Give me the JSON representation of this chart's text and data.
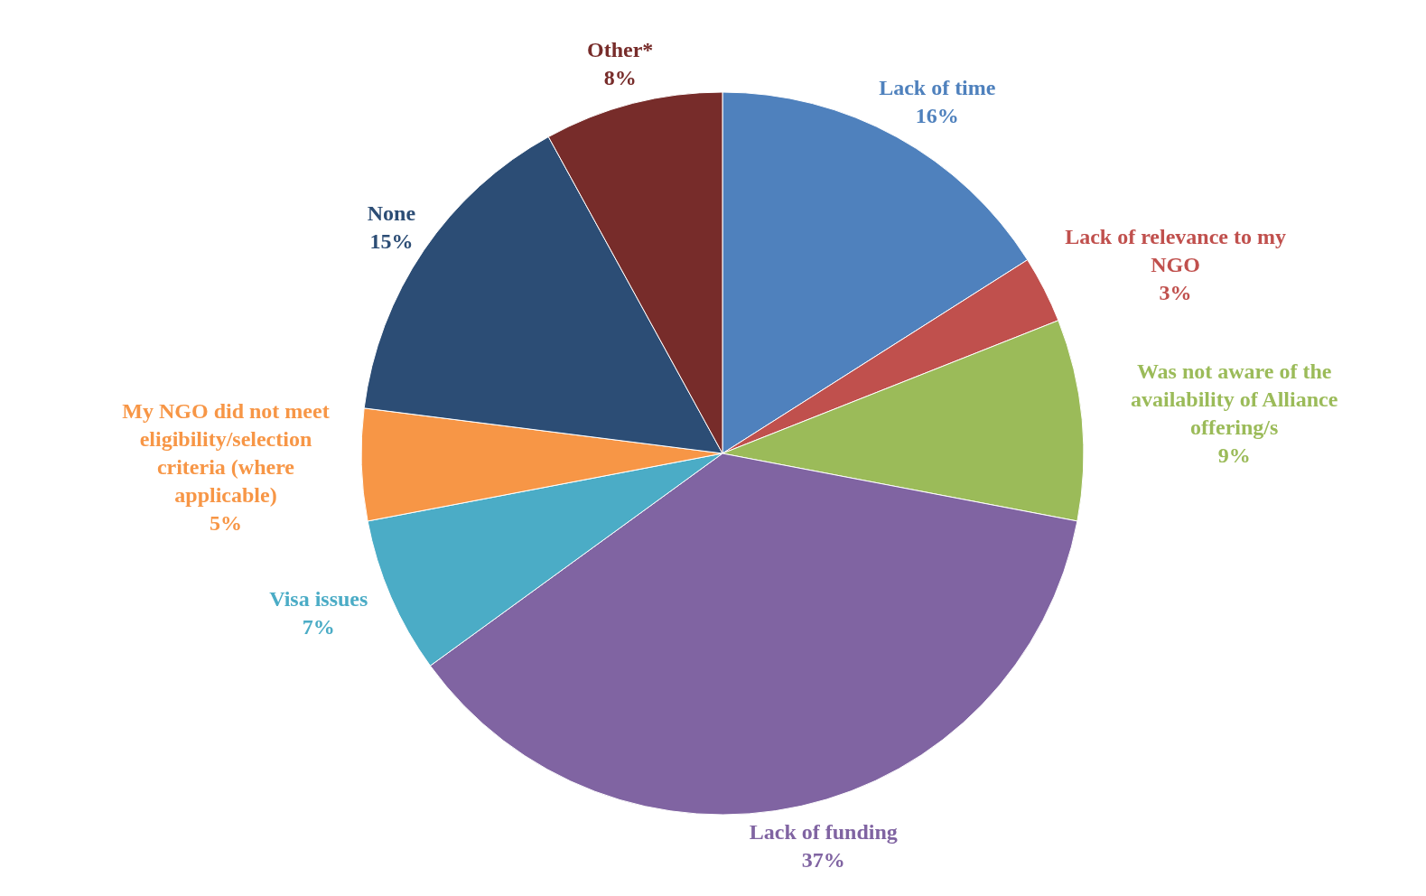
{
  "chart_data": {
    "type": "pie",
    "categories": [
      "Lack of time",
      "Lack of relevance to my NGO",
      "Was not aware of the availability of Alliance offering/s",
      "Lack of funding",
      "Visa issues",
      "My NGO did not meet eligibility/selection criteria (where applicable)",
      "None",
      "Other*"
    ],
    "values": [
      16,
      3,
      9,
      37,
      7,
      5,
      15,
      8
    ],
    "value_labels": [
      "16%",
      "3%",
      "9%",
      "37%",
      "7%",
      "5%",
      "15%",
      "8%"
    ],
    "colors": [
      "#4f81bd",
      "#c0504d",
      "#9bbb59",
      "#8064a2",
      "#4bacc6",
      "#f79646",
      "#2c4d75",
      "#772c2a"
    ],
    "legend": false
  }
}
